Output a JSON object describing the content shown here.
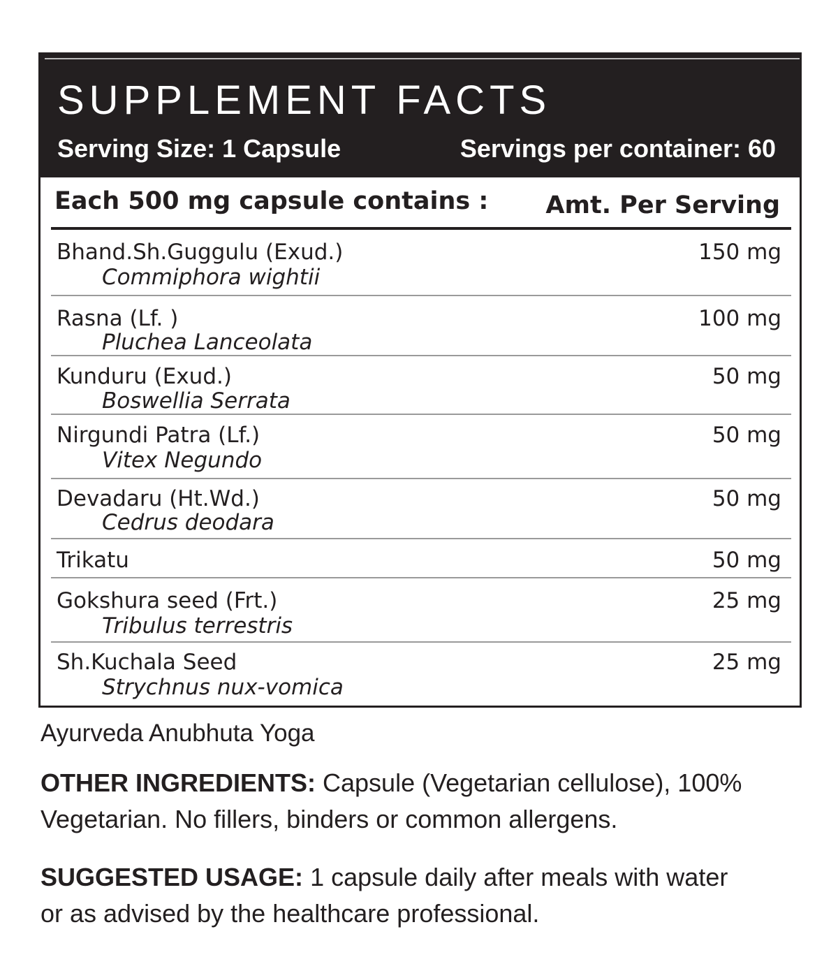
{
  "header": {
    "title": "SUPPLEMENT FACTS",
    "serving_size": "Serving Size: 1 Capsule",
    "servings_per_container": "Servings per container: 60"
  },
  "columns": {
    "left": "Each 500 mg capsule contains :",
    "right": "Amt. Per Serving"
  },
  "ingredients": [
    {
      "name": "Bhand.Sh.Guggulu (Exud.)",
      "latin": "Commiphora wightii",
      "amount": "150 mg"
    },
    {
      "name": "Rasna (Lf. )",
      "latin": "Pluchea Lanceolata",
      "amount": "100 mg"
    },
    {
      "name": "Kunduru (Exud.)",
      "latin": "Boswellia Serrata",
      "amount": "50 mg"
    },
    {
      "name": "Nirgundi Patra (Lf.)",
      "latin": "Vitex Negundo",
      "amount": "50 mg"
    },
    {
      "name": "Devadaru (Ht.Wd.)",
      "latin": "Cedrus deodara",
      "amount": "50 mg"
    },
    {
      "name": "Trikatu",
      "latin": "",
      "amount": "50 mg"
    },
    {
      "name": "Gokshura seed (Frt.)",
      "latin": "Tribulus terrestris",
      "amount": "25 mg"
    },
    {
      "name": "Sh.Kuchala Seed",
      "latin": "Strychnus nux-vomica",
      "amount": "25 mg"
    }
  ],
  "footer": {
    "source": "Ayurveda Anubhuta Yoga",
    "other_label": "OTHER INGREDIENTS:",
    "other_text": " Capsule (Vegetarian cellulose), 100% Vegetarian. No fillers, binders or common allergens.",
    "usage_label": "SUGGESTED USAGE:",
    "usage_text": " 1 capsule daily after meals with water or as advised by the healthcare professional."
  }
}
